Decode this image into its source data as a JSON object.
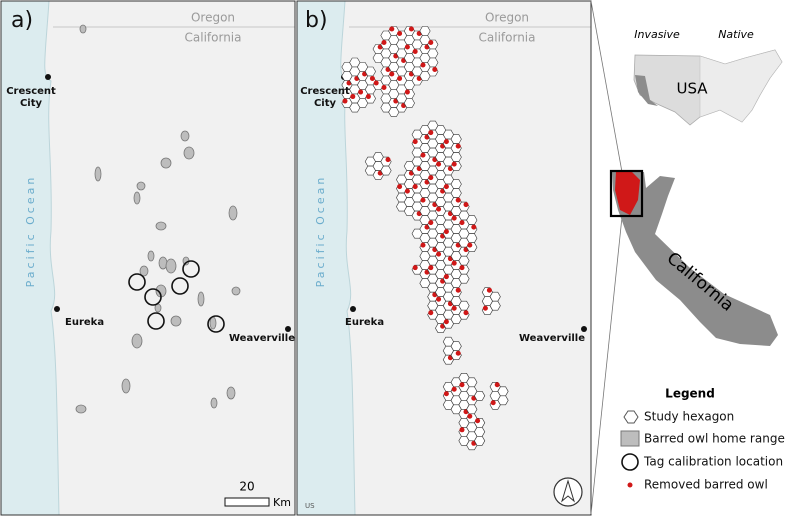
{
  "panels": [
    {
      "label": "a)",
      "states": [
        "Oregon",
        "California"
      ],
      "ocean": "Pacific Ocean",
      "places": {
        "crescent_city": [
          "Crescent",
          "City"
        ],
        "eureka": "Eureka",
        "weaverville": "Weaverville"
      },
      "scale_bar": {
        "value": 20,
        "unit": "Km"
      }
    },
    {
      "label": "b)",
      "states": [
        "Oregon",
        "California"
      ],
      "ocean": "Pacific Ocean",
      "places": {
        "crescent_city": [
          "Crescent",
          "City"
        ],
        "eureka": "Eureka",
        "weaverville": "Weaverville"
      },
      "credit": "US"
    }
  ],
  "inset": {
    "invasive": "Invasive",
    "native": "Native",
    "country": "USA",
    "state": "California"
  },
  "legend": {
    "title": "Legend",
    "items": [
      "Study hexagon",
      "Barred owl home range",
      "Tag calibration location",
      "Removed barred owl"
    ]
  }
}
